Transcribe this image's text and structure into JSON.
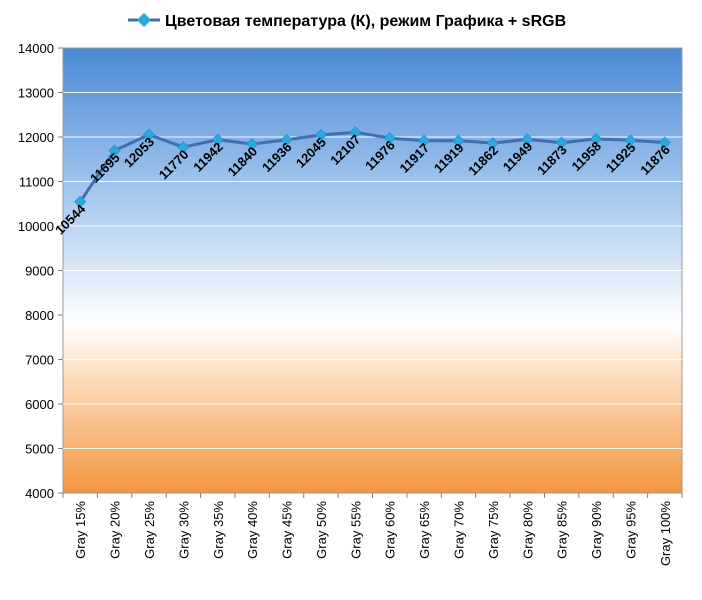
{
  "chart_data": {
    "type": "line",
    "legend": {
      "series_name": "Цветовая температура (К), режим Графика + sRGB",
      "placement": "top"
    },
    "categories": [
      "Gray 15%",
      "Gray 20%",
      "Gray 25%",
      "Gray 30%",
      "Gray 35%",
      "Gray 40%",
      "Gray 45%",
      "Gray 50%",
      "Gray 55%",
      "Gray 60%",
      "Gray 65%",
      "Gray 70%",
      "Gray 75%",
      "Gray 80%",
      "Gray 85%",
      "Gray 90%",
      "Gray 95%",
      "Gray 100%"
    ],
    "series": [
      {
        "name": "Цветовая температура (К), режим Графика + sRGB",
        "values": [
          10544,
          11695,
          12053,
          11770,
          11942,
          11840,
          11936,
          12045,
          12107,
          11976,
          11917,
          11919,
          11862,
          11949,
          11873,
          11958,
          11925,
          11876
        ],
        "color": "#3f6fb0",
        "marker_color": "#2aa8e0"
      }
    ],
    "ylim": [
      4000,
      14000
    ],
    "yticks": [
      4000,
      5000,
      6000,
      7000,
      8000,
      9000,
      10000,
      11000,
      12000,
      13000,
      14000
    ],
    "grid": true,
    "data_labels": true,
    "background_gradient": [
      "#4f8fd6",
      "#ffffff",
      "#f59845"
    ]
  }
}
